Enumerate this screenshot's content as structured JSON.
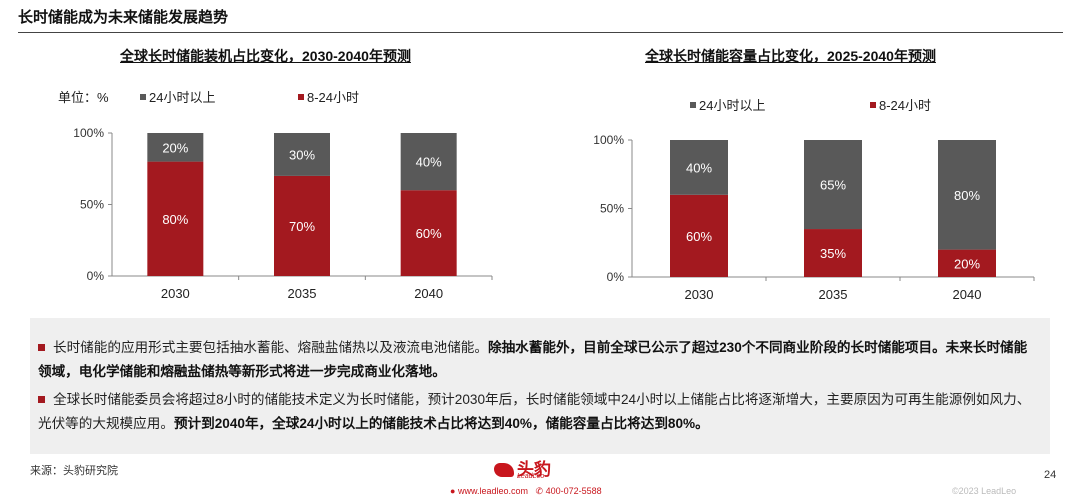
{
  "page": {
    "title": "长时储能成为未来储能发展趋势",
    "source": "来源：头豹研究院",
    "page_number": "24",
    "footer_logo": "头豹",
    "footer_logo_sub": "LeadLeo",
    "footer_website": "www.leadleo.com",
    "footer_phone": "400-072-5588",
    "copyright": "©2023 LeadLeo"
  },
  "notes": [
    {
      "plain": "长时储能的应用形式主要包括抽水蓄能、熔融盐储热以及液流电池储能。",
      "bold": "除抽水蓄能外，目前全球已公示了超过230个不同商业阶段的长时储能项目。未来长时储能领域，电化学储能和熔融盐储热等新形式将进一步完成商业化落地。"
    },
    {
      "plain": "全球长时储能委员会将超过8小时的储能技术定义为长时储能，预计2030年后，长时储能领域中24小时以上储能占比将逐渐增大，主要原因为可再生能源例如风力、光伏等的大规模应用。",
      "bold": "预计到2040年，全球24小时以上的储能技术占比将达到40%，储能容量占比将达到80%。"
    }
  ],
  "colors": {
    "dark_red": "#a3191f",
    "gray": "#595959",
    "accent": "#c8161d"
  },
  "chart_data": [
    {
      "type": "bar",
      "stacked": true,
      "title": "全球长时储能装机占比变化，2030-2040年预测",
      "unit_label": "单位：%",
      "categories": [
        "2030",
        "2035",
        "2040"
      ],
      "ylim": [
        0,
        100
      ],
      "yticks": [
        "0%",
        "50%",
        "100%"
      ],
      "legend_position": "top",
      "series": [
        {
          "name": "8-24小时",
          "values": [
            80,
            70,
            60
          ],
          "labels": [
            "80%",
            "70%",
            "60%"
          ],
          "color": "#a3191f"
        },
        {
          "name": "24小时以上",
          "values": [
            20,
            30,
            40
          ],
          "labels": [
            "20%",
            "30%",
            "40%"
          ],
          "color": "#595959"
        }
      ]
    },
    {
      "type": "bar",
      "stacked": true,
      "title": "全球长时储能容量占比变化，2025-2040年预测",
      "categories": [
        "2030",
        "2035",
        "2040"
      ],
      "ylim": [
        0,
        100
      ],
      "yticks": [
        "0%",
        "50%",
        "100%"
      ],
      "legend_position": "top",
      "series": [
        {
          "name": "8-24小时",
          "values": [
            60,
            35,
            20
          ],
          "labels": [
            "60%",
            "35%",
            "20%"
          ],
          "color": "#a3191f"
        },
        {
          "name": "24小时以上",
          "values": [
            40,
            65,
            80
          ],
          "labels": [
            "40%",
            "65%",
            "80%"
          ],
          "color": "#595959"
        }
      ]
    }
  ]
}
